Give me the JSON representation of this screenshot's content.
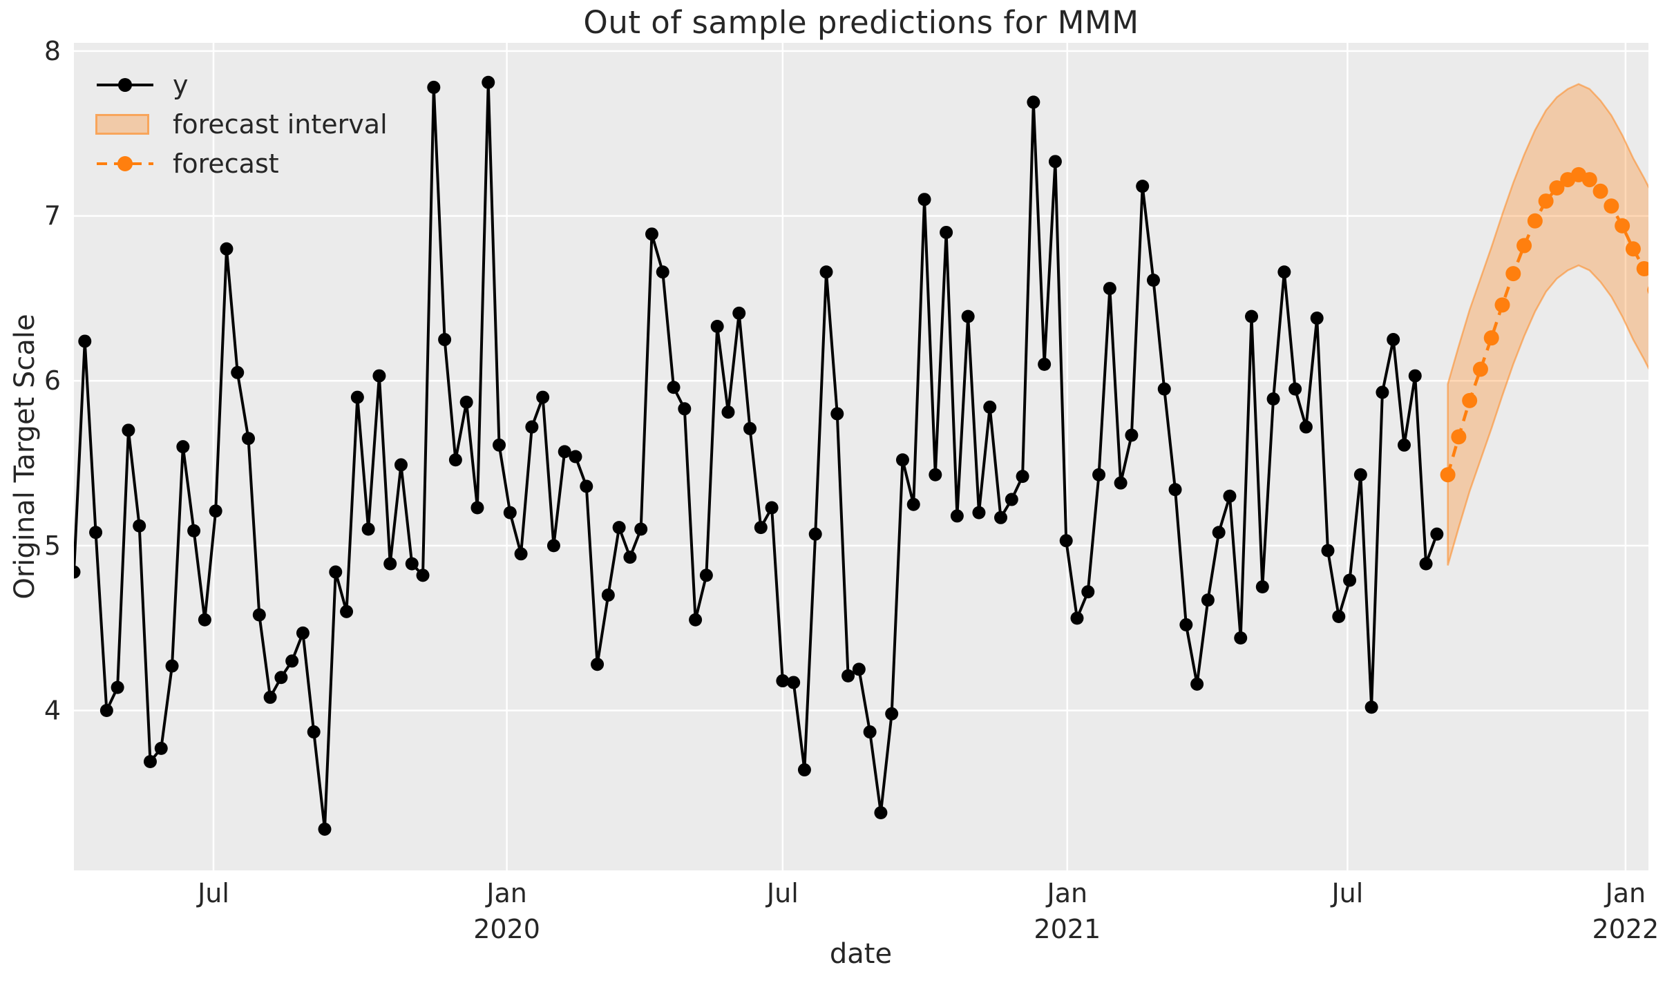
{
  "title": "Out of sample predictions for MMM",
  "axes": {
    "xlabel": "date",
    "ylabel": "Original Target Scale"
  },
  "legend": {
    "position": "upper left",
    "items": [
      {
        "label": "y",
        "type": "solid-line-with-marker",
        "color": "#000000"
      },
      {
        "label": "forecast interval",
        "type": "filled-patch",
        "color": "#ff7f0e",
        "opacity": 0.3
      },
      {
        "label": "forecast",
        "type": "dashed-line-with-marker",
        "color": "#ff7f0e"
      }
    ]
  },
  "colors": {
    "figure_background": "#ffffff",
    "plot_background": "#ebebeb",
    "grid": "#ffffff",
    "text": "#262626",
    "y_series": "#000000",
    "forecast_series": "#ff7f0e",
    "forecast_band_fill": "rgba(255,127,14,0.30)",
    "forecast_band_edge": "rgba(255,127,14,0.50)"
  },
  "chart_data": {
    "type": "line",
    "title": "Out of sample predictions for MMM",
    "xlabel": "date",
    "ylabel": "Original Target Scale",
    "x_unit": "weekly observations (index); axis ticks labeled by month",
    "grid": true,
    "legend_position": "upper left",
    "xlim": [
      0,
      144.4
    ],
    "ylim": [
      3.03,
      8.05
    ],
    "ytick_values": [
      4,
      5,
      6,
      7,
      8
    ],
    "ytick_labels": [
      "4",
      "5",
      "6",
      "7",
      "8"
    ],
    "xtick_positions": [
      12.8,
      39.7,
      65.0,
      91.1,
      116.8,
      142.3
    ],
    "xtick_labels": [
      [
        "Jul",
        ""
      ],
      [
        "Jan",
        "2020"
      ],
      [
        "Jul",
        ""
      ],
      [
        "Jan",
        "2021"
      ],
      [
        "Jul",
        ""
      ],
      [
        "Jan",
        "2022"
      ]
    ],
    "series": [
      {
        "name": "y",
        "type": "line",
        "color": "#000000",
        "marker": "circle",
        "linestyle": "solid",
        "x_start_index": 0,
        "values": [
          4.84,
          6.24,
          5.08,
          4.0,
          4.14,
          5.7,
          5.12,
          3.69,
          3.77,
          4.27,
          5.6,
          5.09,
          4.55,
          5.21,
          6.8,
          6.05,
          5.65,
          4.58,
          4.08,
          4.2,
          4.3,
          4.47,
          3.87,
          3.28,
          4.84,
          4.6,
          5.9,
          5.1,
          6.03,
          4.89,
          5.49,
          4.89,
          4.82,
          7.78,
          6.25,
          5.52,
          5.87,
          5.23,
          7.81,
          5.61,
          5.2,
          4.95,
          5.72,
          5.9,
          5.0,
          5.57,
          5.54,
          5.36,
          4.28,
          4.7,
          5.11,
          4.93,
          5.1,
          6.89,
          6.66,
          5.96,
          5.83,
          4.55,
          4.82,
          6.33,
          5.81,
          6.41,
          5.71,
          5.11,
          5.23,
          4.18,
          4.17,
          3.64,
          5.07,
          6.66,
          5.8,
          4.21,
          4.25,
          3.87,
          3.38,
          3.98,
          5.52,
          5.25,
          7.1,
          5.43,
          6.9,
          5.18,
          6.39,
          5.2,
          5.84,
          5.17,
          5.28,
          5.42,
          7.69,
          6.1,
          7.33,
          5.03,
          4.56,
          4.72,
          5.43,
          6.56,
          5.38,
          5.67,
          7.18,
          6.61,
          5.95,
          5.34,
          4.52,
          4.16,
          4.67,
          5.08,
          5.3,
          4.44,
          6.39,
          4.75,
          5.89,
          6.66,
          5.95,
          5.72,
          6.38,
          4.97,
          4.57,
          4.79,
          5.43,
          4.02,
          5.93,
          6.25,
          5.61,
          6.03,
          4.89,
          5.07
        ]
      },
      {
        "name": "forecast",
        "type": "line",
        "color": "#ff7f0e",
        "marker": "circle",
        "linestyle": "dashed",
        "x_start_index": 126,
        "values": [
          5.43,
          5.66,
          5.88,
          6.07,
          6.26,
          6.46,
          6.65,
          6.82,
          6.97,
          7.09,
          7.17,
          7.22,
          7.25,
          7.22,
          7.15,
          7.06,
          6.94,
          6.8,
          6.68,
          6.55
        ]
      },
      {
        "name": "forecast interval",
        "type": "band",
        "color": "#ff7f0e",
        "opacity": 0.3,
        "x_start_index": 126,
        "lower": [
          4.88,
          5.11,
          5.33,
          5.52,
          5.71,
          5.91,
          6.1,
          6.27,
          6.42,
          6.54,
          6.62,
          6.67,
          6.7,
          6.67,
          6.6,
          6.51,
          6.39,
          6.25,
          6.13,
          6.0
        ],
        "upper": [
          5.98,
          6.21,
          6.43,
          6.62,
          6.81,
          7.01,
          7.2,
          7.37,
          7.52,
          7.64,
          7.72,
          7.77,
          7.8,
          7.77,
          7.7,
          7.61,
          7.49,
          7.35,
          7.23,
          7.1
        ]
      }
    ]
  }
}
